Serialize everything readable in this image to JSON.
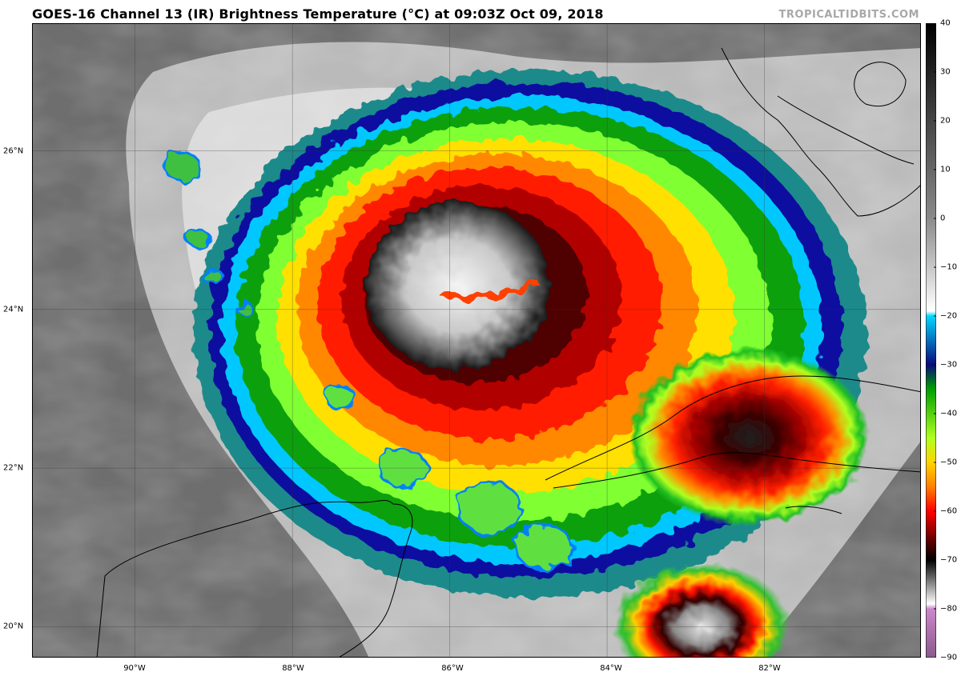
{
  "header": {
    "title": "GOES-16 Channel 13 (IR) Brightness Temperature (°C) at 09:03Z Oct 09, 2018",
    "credit": "TROPICALTIDBITS.COM"
  },
  "map": {
    "lon_range": [
      -91.3,
      -80.0
    ],
    "lat_range": [
      19.6,
      27.6
    ],
    "lon_ticks": [
      "90°W",
      "88°W",
      "86°W",
      "84°W",
      "82°W"
    ],
    "lat_ticks": [
      "20°N",
      "22°N",
      "24°N",
      "26°N"
    ],
    "gridlines": true,
    "storm_center_lon": -85.9,
    "storm_center_lat": 24.3
  },
  "colorbar": {
    "labels": [
      "40",
      "30",
      "20",
      "10",
      "0",
      "−10",
      "−20",
      "−30",
      "−40",
      "−50",
      "−60",
      "−70",
      "−80",
      "−90"
    ],
    "range": [
      -90,
      40
    ],
    "stops": [
      {
        "t": 40,
        "color": "#000000"
      },
      {
        "t": 0,
        "color": "#8a8a8a"
      },
      {
        "t": -19,
        "color": "#ffffff"
      },
      {
        "t": -20,
        "color": "#00d8ff"
      },
      {
        "t": -30,
        "color": "#0a0a7a"
      },
      {
        "t": -35,
        "color": "#00a000"
      },
      {
        "t": -45,
        "color": "#b0ff20"
      },
      {
        "t": -50,
        "color": "#ffd400"
      },
      {
        "t": -55,
        "color": "#ff8000"
      },
      {
        "t": -60,
        "color": "#ff0000"
      },
      {
        "t": -66,
        "color": "#600000"
      },
      {
        "t": -70,
        "color": "#000000"
      },
      {
        "t": -79,
        "color": "#ffffff"
      },
      {
        "t": -80,
        "color": "#cc88cc"
      },
      {
        "t": -90,
        "color": "#8a5a8a"
      }
    ]
  }
}
